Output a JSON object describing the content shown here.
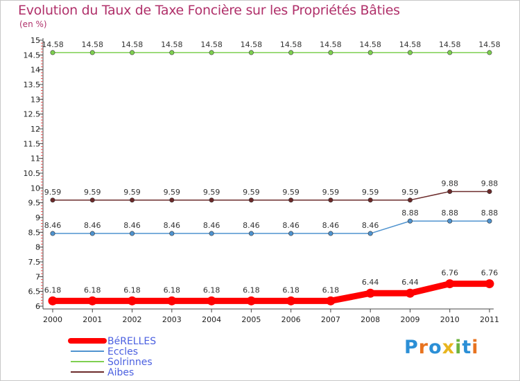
{
  "header": {
    "title": "Evolution du Taux de Taxe Foncière sur les Propriétés Bâties",
    "unit": "(en %)"
  },
  "logo": {
    "text": "Proxiti",
    "colors": [
      "#2b8fd6",
      "#e8731f",
      "#2b8fd6",
      "#e8b51f",
      "#6cb33f",
      "#2b8fd6",
      "#e8731f"
    ]
  },
  "chart_data": {
    "type": "line",
    "title": "Evolution du Taux de Taxe Foncière sur les Propriétés Bâties",
    "ylabel": "(en %)",
    "xlabel": "",
    "x": [
      "2000",
      "2001",
      "2002",
      "2003",
      "2004",
      "2005",
      "2006",
      "2007",
      "2008",
      "2009",
      "2010",
      "2011"
    ],
    "ylim": [
      6,
      15
    ],
    "yticks": [
      "6",
      "6.5",
      "7",
      "7.5",
      "8",
      "8.5",
      "9",
      "9.5",
      "10",
      "10.5",
      "11",
      "11.5",
      "12",
      "12.5",
      "13",
      "13.5",
      "14",
      "14.5",
      "15"
    ],
    "legend_position": "bottom-left",
    "series": [
      {
        "name": "BéRELLES",
        "color": "#ff0000",
        "values": [
          6.18,
          6.18,
          6.18,
          6.18,
          6.18,
          6.18,
          6.18,
          6.18,
          6.44,
          6.44,
          6.76,
          6.76
        ],
        "labels": [
          "6.18",
          "6.18",
          "6.18",
          "6.18",
          "6.18",
          "6.18",
          "6.18",
          "6.18",
          "6.44",
          "6.44",
          "6.76",
          "6.76"
        ]
      },
      {
        "name": "Eccles",
        "color": "#4f93cf",
        "values": [
          8.46,
          8.46,
          8.46,
          8.46,
          8.46,
          8.46,
          8.46,
          8.46,
          8.46,
          8.88,
          8.88,
          8.88
        ],
        "labels": [
          "8.46",
          "8.46",
          "8.46",
          "8.46",
          "8.46",
          "8.46",
          "8.46",
          "8.46",
          "8.46",
          "8.88",
          "8.88",
          "8.88"
        ]
      },
      {
        "name": "Solrinnes",
        "color": "#7ecf50",
        "values": [
          14.58,
          14.58,
          14.58,
          14.58,
          14.58,
          14.58,
          14.58,
          14.58,
          14.58,
          14.58,
          14.58,
          14.58
        ],
        "labels": [
          "14.58",
          "14.58",
          "14.58",
          "14.58",
          "14.58",
          "14.58",
          "14.58",
          "14.58",
          "14.58",
          "14.58",
          "14.58",
          "14.58"
        ]
      },
      {
        "name": "Aibes",
        "color": "#6b2a2a",
        "values": [
          9.59,
          9.59,
          9.59,
          9.59,
          9.59,
          9.59,
          9.59,
          9.59,
          9.59,
          9.59,
          9.88,
          9.88
        ],
        "labels": [
          "9.59",
          "9.59",
          "9.59",
          "9.59",
          "9.59",
          "9.59",
          "9.59",
          "9.59",
          "9.59",
          "9.59",
          "9.88",
          "9.88"
        ]
      }
    ]
  }
}
